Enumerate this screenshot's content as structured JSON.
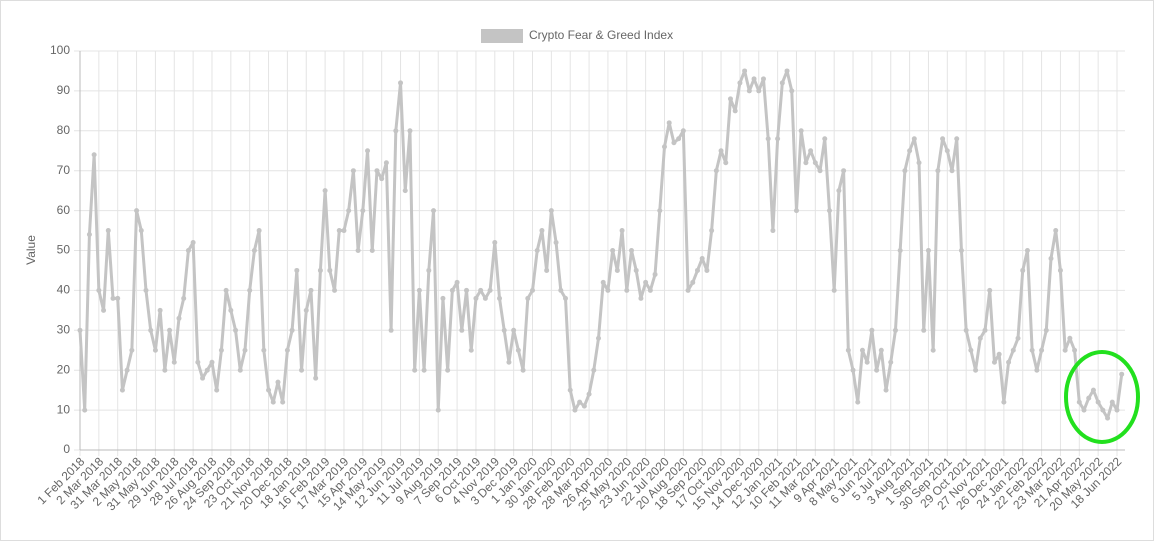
{
  "chart_data": {
    "type": "line",
    "y_label": "Value",
    "categories": [
      "1 Feb 2018",
      null,
      null,
      null,
      "2 Mar 2018",
      null,
      null,
      null,
      "31 Mar 2018",
      null,
      null,
      null,
      "2 May 2018",
      null,
      null,
      null,
      "31 May 2018",
      null,
      null,
      null,
      "29 Jun 2018",
      null,
      null,
      null,
      "28 Jul 2018",
      null,
      null,
      null,
      "26 Aug 2018",
      null,
      null,
      null,
      "24 Sep 2018",
      null,
      null,
      null,
      "23 Oct 2018",
      null,
      null,
      null,
      "21 Nov 2018",
      null,
      null,
      null,
      "20 Dec 2018",
      null,
      null,
      null,
      "18 Jan 2019",
      null,
      null,
      null,
      "16 Feb 2019",
      null,
      null,
      null,
      "17 Mar 2019",
      null,
      null,
      null,
      "15 Apr 2019",
      null,
      null,
      null,
      "14 May 2019",
      null,
      null,
      null,
      "12 Jun 2019",
      null,
      null,
      null,
      "11 Jul 2019",
      null,
      null,
      null,
      "9 Aug 2019",
      null,
      null,
      null,
      "7 Sep 2019",
      null,
      null,
      null,
      "6 Oct 2019",
      null,
      null,
      null,
      "4 Nov 2019",
      null,
      null,
      null,
      "3 Dec 2019",
      null,
      null,
      null,
      "1 Jan 2020",
      null,
      null,
      null,
      "30 Jan 2020",
      null,
      null,
      null,
      "28 Feb 2020",
      null,
      null,
      null,
      "28 Mar 2020",
      null,
      null,
      null,
      "26 Apr 2020",
      null,
      null,
      null,
      "25 May 2020",
      null,
      null,
      null,
      "23 Jun 2020",
      null,
      null,
      null,
      "22 Jul 2020",
      null,
      null,
      null,
      "20 Aug 2020",
      null,
      null,
      null,
      "18 Sep 2020",
      null,
      null,
      null,
      "17 Oct 2020",
      null,
      null,
      null,
      "15 Nov 2020",
      null,
      null,
      null,
      "14 Dec 2020",
      null,
      null,
      null,
      "12 Jan 2021",
      null,
      null,
      null,
      "10 Feb 2021",
      null,
      null,
      null,
      "11 Mar 2021",
      null,
      null,
      null,
      "9 Apr 2021",
      null,
      null,
      null,
      "8 May 2021",
      null,
      null,
      null,
      "6 Jun 2021",
      null,
      null,
      null,
      "5 Jul 2021",
      null,
      null,
      null,
      "3 Aug 2021",
      null,
      null,
      null,
      "1 Sep 2021",
      null,
      null,
      null,
      "30 Sep 2021",
      null,
      null,
      null,
      "29 Oct 2021",
      null,
      null,
      null,
      "27 Nov 2021",
      null,
      null,
      null,
      "26 Dec 2021",
      null,
      null,
      null,
      "24 Jan 2022",
      null,
      null,
      null,
      "22 Feb 2022",
      null,
      null,
      null,
      "23 Mar 2022",
      null,
      null,
      null,
      "21 Apr 2022",
      null,
      null,
      null,
      "20 May 2022",
      null,
      null,
      null,
      "18 Jun 2022",
      null
    ],
    "series": [
      {
        "name": "Crypto Fear & Greed Index",
        "color": "#c4c4c4",
        "values": [
          30,
          10,
          54,
          74,
          40,
          35,
          55,
          38,
          38,
          15,
          20,
          25,
          60,
          55,
          40,
          30,
          25,
          35,
          20,
          30,
          22,
          33,
          38,
          50,
          52,
          22,
          18,
          20,
          22,
          15,
          25,
          40,
          35,
          30,
          20,
          25,
          40,
          50,
          55,
          25,
          15,
          12,
          17,
          12,
          25,
          30,
          45,
          20,
          35,
          40,
          18,
          45,
          65,
          45,
          40,
          55,
          55,
          60,
          70,
          50,
          60,
          75,
          50,
          70,
          68,
          72,
          30,
          80,
          92,
          65,
          80,
          20,
          40,
          20,
          45,
          60,
          10,
          38,
          20,
          40,
          42,
          30,
          40,
          25,
          38,
          40,
          38,
          40,
          52,
          38,
          30,
          22,
          30,
          25,
          20,
          38,
          40,
          50,
          55,
          45,
          60,
          52,
          40,
          38,
          15,
          10,
          12,
          11,
          14,
          20,
          28,
          42,
          40,
          50,
          45,
          55,
          40,
          50,
          45,
          38,
          42,
          40,
          44,
          60,
          76,
          82,
          77,
          78,
          80,
          40,
          42,
          45,
          48,
          45,
          55,
          70,
          75,
          72,
          88,
          85,
          92,
          95,
          90,
          93,
          90,
          93,
          78,
          55,
          78,
          92,
          95,
          90,
          60,
          80,
          72,
          75,
          72,
          70,
          78,
          60,
          40,
          65,
          70,
          25,
          20,
          12,
          25,
          22,
          30,
          20,
          25,
          15,
          22,
          30,
          50,
          70,
          75,
          78,
          72,
          30,
          50,
          25,
          70,
          78,
          75,
          70,
          78,
          50,
          30,
          25,
          20,
          28,
          30,
          40,
          22,
          24,
          12,
          22,
          25,
          28,
          45,
          50,
          25,
          20,
          25,
          30,
          48,
          55,
          45,
          25,
          28,
          25,
          12,
          10,
          13,
          15,
          12,
          10,
          8,
          12,
          10,
          19
        ]
      }
    ],
    "ylim": [
      0,
      100
    ],
    "yticks": [
      0,
      10,
      20,
      30,
      40,
      50,
      60,
      70,
      80,
      90,
      100
    ],
    "grid": true
  }
}
